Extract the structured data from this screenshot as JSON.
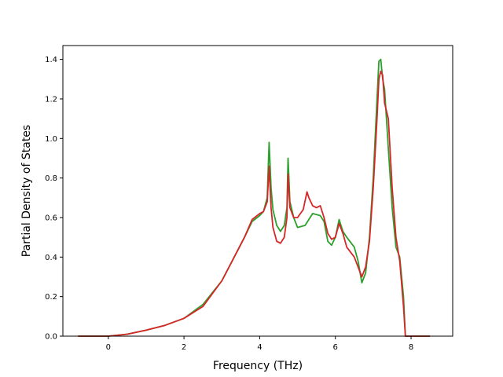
{
  "chart_data": {
    "type": "line",
    "title": "",
    "xlabel": "Frequency (THz)",
    "ylabel": "Partial Density of States",
    "xlim": [
      -1.2,
      9.1
    ],
    "ylim": [
      0,
      1.47
    ],
    "x_ticks": [
      0,
      2,
      4,
      6,
      8
    ],
    "y_ticks": [
      0.0,
      0.2,
      0.4,
      0.6,
      0.8,
      1.0,
      1.2,
      1.4
    ],
    "x_tick_labels": [
      "0",
      "2",
      "4",
      "6",
      "8"
    ],
    "y_tick_labels": [
      "0.0",
      "0.2",
      "0.4",
      "0.6",
      "0.8",
      "1.0",
      "1.2",
      "1.4"
    ],
    "grid": false,
    "legend": "none",
    "series": [
      {
        "color": "#2ca02c",
        "x": [
          -0.8,
          -0.2,
          0.0,
          0.5,
          1.0,
          1.5,
          2.0,
          2.5,
          3.0,
          3.3,
          3.6,
          3.8,
          4.0,
          4.1,
          4.2,
          4.25,
          4.3,
          4.35,
          4.45,
          4.55,
          4.65,
          4.72,
          4.75,
          4.8,
          4.9,
          5.0,
          5.2,
          5.4,
          5.6,
          5.7,
          5.8,
          5.9,
          6.0,
          6.1,
          6.2,
          6.3,
          6.5,
          6.6,
          6.7,
          6.8,
          6.9,
          7.0,
          7.1,
          7.15,
          7.2,
          7.25,
          7.3,
          7.4,
          7.5,
          7.6,
          7.7,
          7.8,
          7.85,
          8.0,
          8.5
        ],
        "values": [
          0.0,
          0.0,
          0.0,
          0.01,
          0.03,
          0.055,
          0.09,
          0.16,
          0.28,
          0.39,
          0.5,
          0.58,
          0.61,
          0.63,
          0.7,
          0.98,
          0.75,
          0.64,
          0.56,
          0.53,
          0.56,
          0.65,
          0.9,
          0.68,
          0.6,
          0.55,
          0.56,
          0.62,
          0.61,
          0.58,
          0.48,
          0.46,
          0.5,
          0.59,
          0.53,
          0.5,
          0.45,
          0.38,
          0.27,
          0.32,
          0.5,
          0.8,
          1.2,
          1.39,
          1.4,
          1.3,
          1.25,
          0.95,
          0.65,
          0.45,
          0.4,
          0.2,
          0.0,
          0.0,
          0.0
        ]
      },
      {
        "color": "#d62728",
        "x": [
          -0.8,
          -0.2,
          0.0,
          0.5,
          1.0,
          1.5,
          2.0,
          2.5,
          3.0,
          3.3,
          3.6,
          3.8,
          4.0,
          4.1,
          4.2,
          4.25,
          4.3,
          4.35,
          4.45,
          4.55,
          4.65,
          4.72,
          4.75,
          4.8,
          4.9,
          5.0,
          5.15,
          5.25,
          5.3,
          5.4,
          5.5,
          5.6,
          5.7,
          5.8,
          5.9,
          6.0,
          6.1,
          6.2,
          6.3,
          6.5,
          6.6,
          6.7,
          6.8,
          6.9,
          7.0,
          7.1,
          7.15,
          7.2,
          7.25,
          7.3,
          7.4,
          7.5,
          7.6,
          7.7,
          7.8,
          7.85,
          8.0,
          8.5
        ],
        "values": [
          0.0,
          0.0,
          0.0,
          0.01,
          0.03,
          0.055,
          0.09,
          0.15,
          0.28,
          0.39,
          0.5,
          0.59,
          0.62,
          0.63,
          0.68,
          0.86,
          0.65,
          0.55,
          0.48,
          0.47,
          0.5,
          0.6,
          0.82,
          0.65,
          0.6,
          0.6,
          0.64,
          0.73,
          0.7,
          0.66,
          0.65,
          0.66,
          0.6,
          0.52,
          0.49,
          0.5,
          0.57,
          0.52,
          0.45,
          0.4,
          0.35,
          0.3,
          0.35,
          0.48,
          0.75,
          1.1,
          1.3,
          1.34,
          1.32,
          1.18,
          1.1,
          0.75,
          0.5,
          0.38,
          0.15,
          0.0,
          0.0,
          0.0
        ]
      }
    ]
  }
}
